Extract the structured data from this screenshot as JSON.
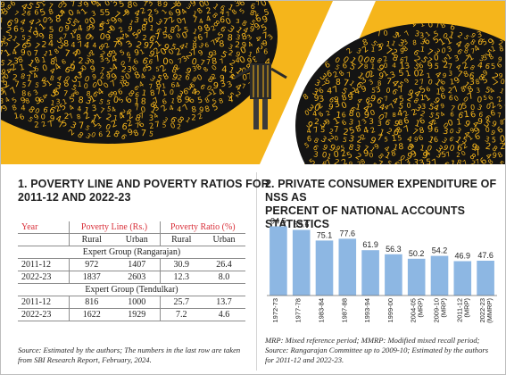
{
  "colors": {
    "accent": "#f5b51b",
    "bar": "#8db7e3",
    "table_header": "#d9303a",
    "dark": "#141414"
  },
  "table": {
    "title_line1": "1. POVERTY LINE AND POVERTY RATIOS FOR",
    "title_line2": "2011-12 AND 2022-23",
    "col_year": "Year",
    "col_poverty_line": "Poverty Line (Rs.)",
    "col_poverty_ratio": "Poverty Ratio (%)",
    "sub_rural": "Rural",
    "sub_urban": "Urban",
    "groups": [
      {
        "name": "Expert Group (Rangarajan)",
        "rows": [
          {
            "year": "2011-12",
            "line_rural": "972",
            "line_urban": "1407",
            "ratio_rural": "30.9",
            "ratio_urban": "26.4"
          },
          {
            "year": "2022-23",
            "line_rural": "1837",
            "line_urban": "2603",
            "ratio_rural": "12.3",
            "ratio_urban": "8.0"
          }
        ]
      },
      {
        "name": "Expert Group (Tendulkar)",
        "rows": [
          {
            "year": "2011-12",
            "line_rural": "816",
            "line_urban": "1000",
            "ratio_rural": "25.7",
            "ratio_urban": "13.7"
          },
          {
            "year": "2022-23",
            "line_rural": "1622",
            "line_urban": "1929",
            "ratio_rural": "7.2",
            "ratio_urban": "4.6"
          }
        ]
      }
    ],
    "source_line1": "Source: Estimated by the authors; The numbers in the last row are taken",
    "source_line2": "from SBI Research Report, February, 2024."
  },
  "chart_data": {
    "type": "bar",
    "title": "2. PRIVATE CONSUMER EXPENDITURE OF NSS AS PERCENT OF NATIONAL ACCOUNTS STATISTICS",
    "title_line1": "2. PRIVATE CONSUMER EXPENDITURE OF NSS AS",
    "title_line2": "PERCENT OF NATIONAL ACCOUNTS STATISTICS",
    "categories": [
      "1972-73",
      "1977-78",
      "1983-84",
      "1987-88",
      "1993-94",
      "1999-00",
      "2004-05 (MRP)",
      "2009-10 (MRP)",
      "2011-12 (MRP)",
      "2022-23 (MMRP)"
    ],
    "tick_line1": [
      "1972-73",
      "1977-78",
      "1983-84",
      "1987-88",
      "1993-94",
      "1999-00",
      "2004-05",
      "2009-10",
      "2011-12",
      "2022-23"
    ],
    "tick_line2": [
      "",
      "",
      "",
      "",
      "",
      "",
      "(MRP)",
      "(MRP)",
      "(MRP)",
      "(MMRP)"
    ],
    "values": [
      94.5,
      89.6,
      75.1,
      77.6,
      61.9,
      56.3,
      50.2,
      54.2,
      46.9,
      47.6
    ],
    "value_labels": [
      "94.5",
      "89.6",
      "75.1",
      "77.6",
      "61.9",
      "56.3",
      "50.2",
      "54.2",
      "46.9",
      "47.6"
    ],
    "ylim": [
      0,
      100
    ],
    "xlabel": "",
    "ylabel": "",
    "grid": false,
    "notes_line1": "MRP: Mixed reference period; MMRP: Modified mixed recall period;",
    "notes_line2": "Source: Rangarajan Committee up to 2009-10; Estimated by the authors",
    "notes_line3": "for 2011-12 and 2022-23."
  }
}
